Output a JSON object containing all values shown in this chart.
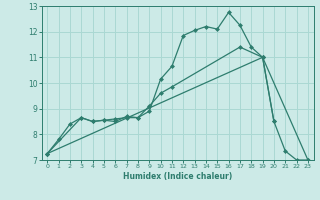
{
  "title": "",
  "xlabel": "Humidex (Indice chaleur)",
  "bg_color": "#cceae7",
  "line_color": "#2e7d6e",
  "grid_color": "#aad8d3",
  "xlim": [
    -0.5,
    23.5
  ],
  "ylim": [
    7,
    13
  ],
  "xticks": [
    0,
    1,
    2,
    3,
    4,
    5,
    6,
    7,
    8,
    9,
    10,
    11,
    12,
    13,
    14,
    15,
    16,
    17,
    18,
    19,
    20,
    21,
    22,
    23
  ],
  "yticks": [
    7,
    8,
    9,
    10,
    11,
    12,
    13
  ],
  "line1_x": [
    0,
    1,
    2,
    3,
    4,
    5,
    6,
    7,
    8,
    9,
    10,
    11,
    12,
    13,
    14,
    15,
    16,
    17,
    18,
    19,
    20,
    21,
    22,
    23
  ],
  "line1_y": [
    7.25,
    7.8,
    8.4,
    8.65,
    8.5,
    8.55,
    8.6,
    8.65,
    8.65,
    8.9,
    10.15,
    10.65,
    11.85,
    12.05,
    12.2,
    12.1,
    12.75,
    12.25,
    11.4,
    11.0,
    8.5,
    7.35,
    7.0,
    7.0
  ],
  "line2_x": [
    0,
    3,
    4,
    5,
    6,
    7,
    8,
    9,
    10,
    11,
    17,
    19,
    20
  ],
  "line2_y": [
    7.25,
    8.65,
    8.5,
    8.55,
    8.5,
    8.7,
    8.65,
    9.1,
    9.6,
    9.85,
    11.4,
    11.0,
    8.5
  ],
  "line3_x": [
    0,
    19,
    23
  ],
  "line3_y": [
    7.25,
    11.0,
    7.0
  ]
}
